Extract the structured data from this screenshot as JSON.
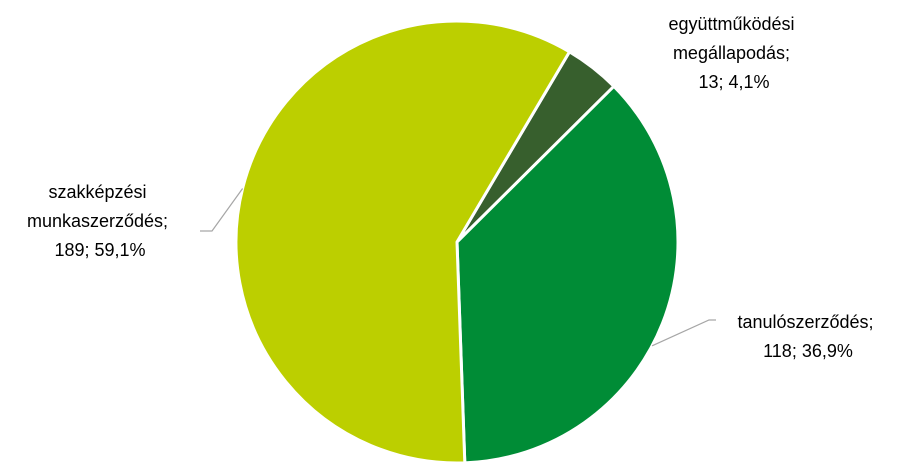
{
  "chart_data": {
    "type": "pie",
    "title": "",
    "colors": {
      "szakkepzesi": "#bccf00",
      "egyuttmukodesi": "#375f2d",
      "tanulo": "#008c36",
      "leader_line": "#a6a6a6"
    },
    "slices": [
      {
        "key": "egyuttmukodesi",
        "label_lines": [
          "együttműködési",
          "megállapodás;",
          "13; 4,1%"
        ],
        "value": 13,
        "percent": 4.1
      },
      {
        "key": "tanulo",
        "label_lines": [
          "tanulószerződés;",
          "118; 36,9%"
        ],
        "value": 118,
        "percent": 36.9
      },
      {
        "key": "szakkepzesi",
        "label_lines": [
          "szakképzési",
          "munkaszerződés;",
          "189; 59,1%"
        ],
        "value": 189,
        "percent": 59.1
      }
    ]
  }
}
